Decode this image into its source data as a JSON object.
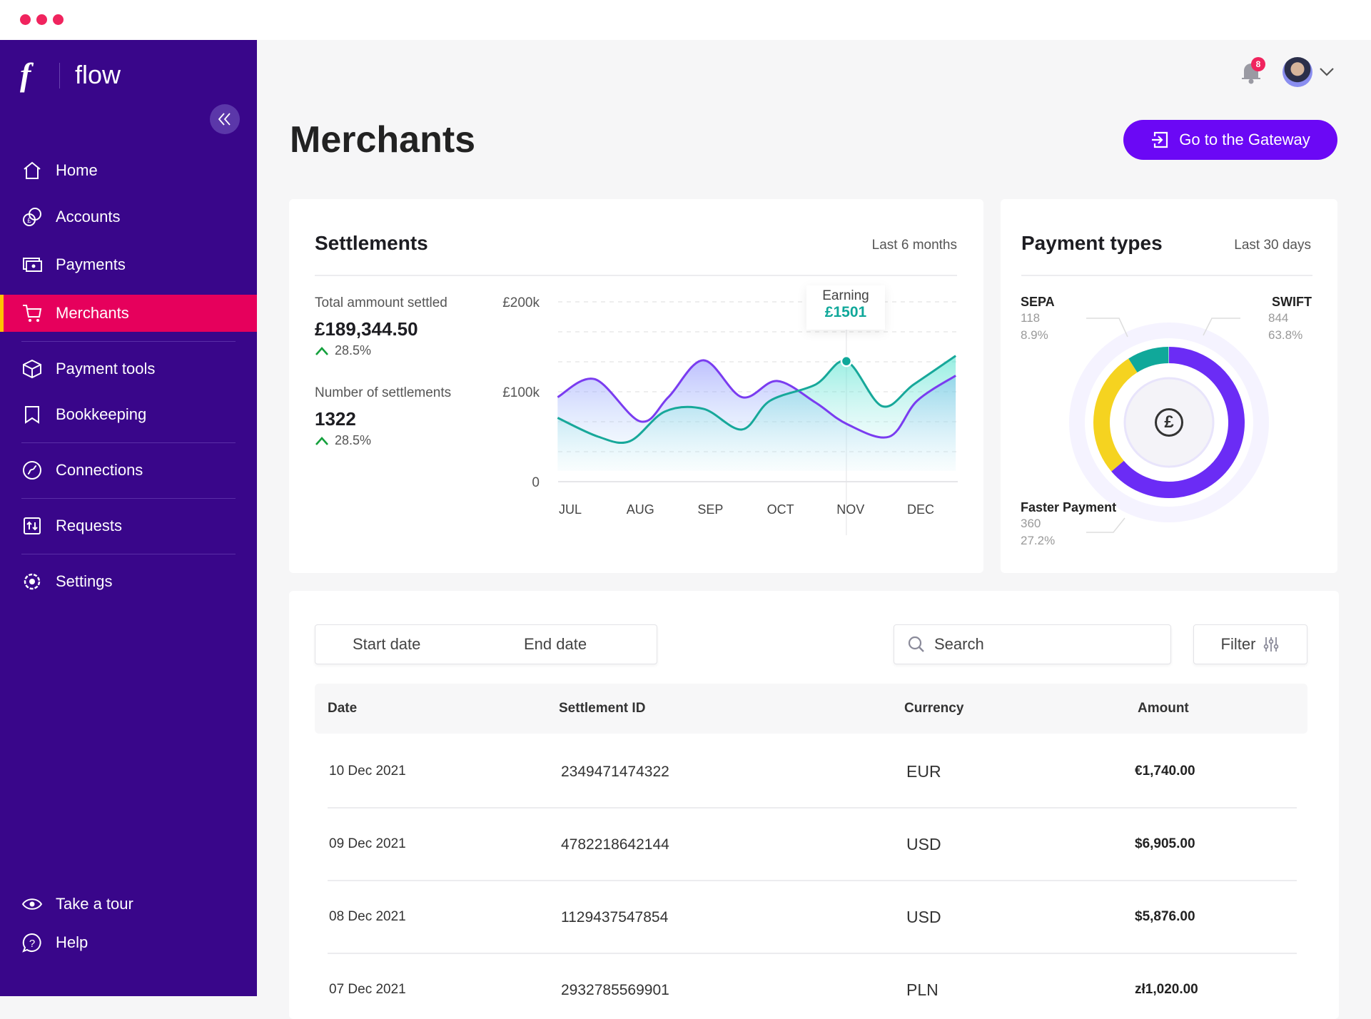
{
  "app": {
    "logo_letter": "f",
    "name": "flow"
  },
  "sidebar": {
    "items": [
      {
        "label": "Home",
        "icon": "home-icon"
      },
      {
        "label": "Accounts",
        "icon": "coins-icon"
      },
      {
        "label": "Payments",
        "icon": "cash-icon"
      },
      {
        "label": "Merchants",
        "icon": "cart-icon",
        "active": true
      },
      {
        "label": "Payment tools",
        "icon": "box-icon"
      },
      {
        "label": "Bookkeeping",
        "icon": "bookmark-icon"
      },
      {
        "label": "Connections",
        "icon": "connections-icon"
      },
      {
        "label": "Requests",
        "icon": "transfer-icon"
      },
      {
        "label": "Settings",
        "icon": "gear-icon"
      }
    ],
    "footer": [
      {
        "label": "Take a tour",
        "icon": "eye-icon"
      },
      {
        "label": "Help",
        "icon": "help-icon"
      }
    ]
  },
  "header": {
    "notifications": "8",
    "title": "Merchants",
    "gateway_button": "Go to the Gateway"
  },
  "settlements": {
    "title": "Settlements",
    "period": "Last 6 months",
    "total_label": "Total ammount settled",
    "total_value": "£189,344.50",
    "total_change": "28.5%",
    "count_label": "Number of settlements",
    "count_value": "1322",
    "count_change": "28.5%",
    "tooltip_label": "Earning",
    "tooltip_value": "£1501"
  },
  "chart_data": {
    "type": "line",
    "categories": [
      "JUL",
      "AUG",
      "SEP",
      "OCT",
      "NOV",
      "DEC"
    ],
    "y_ticks": [
      "£200k",
      "£100k",
      "0"
    ],
    "ylim": [
      0,
      200
    ],
    "series": [
      {
        "name": "purple",
        "color": "#7a3cf0",
        "x": [
          -0.18,
          0.35,
          1.0,
          1.4,
          1.9,
          2.45,
          2.95,
          3.5,
          3.95,
          4.55,
          4.95,
          5.5
        ],
        "values": [
          94,
          114,
          67,
          94,
          135,
          94,
          112,
          88,
          64,
          50,
          90,
          118
        ]
      },
      {
        "name": "teal",
        "color": "#17a89a",
        "x": [
          -0.18,
          0.4,
          0.85,
          1.35,
          1.9,
          2.45,
          2.85,
          3.5,
          3.94,
          4.45,
          4.9,
          5.5
        ],
        "values": [
          71,
          50,
          45,
          78,
          81,
          58,
          90,
          108,
          134,
          84,
          108,
          140
        ]
      }
    ],
    "highlight": {
      "series": "teal",
      "x": 3.94,
      "value": 134
    }
  },
  "payment_types": {
    "title": "Payment types",
    "period": "Last 30 days",
    "chart_data": {
      "type": "pie",
      "slices": [
        {
          "name": "SWIFT",
          "count": "844",
          "percent": "63.8%",
          "value": 63.8,
          "color": "#6b2cf5"
        },
        {
          "name": "Faster Payment",
          "count": "360",
          "percent": "27.2%",
          "value": 27.2,
          "color": "#f5d320"
        },
        {
          "name": "SEPA",
          "count": "118",
          "percent": "8.9%",
          "value": 8.9,
          "color": "#10a89a"
        }
      ]
    },
    "center_symbol": "£"
  },
  "table": {
    "start_date_placeholder": "Start date",
    "end_date_placeholder": "End date",
    "search_placeholder": "Search",
    "filter_label": "Filter",
    "columns": [
      "Date",
      "Settlement ID",
      "Currency",
      "Amount"
    ],
    "rows": [
      [
        "10 Dec 2021",
        "2349471474322",
        "EUR",
        "€1,740.00"
      ],
      [
        "09 Dec 2021",
        "4782218642144",
        "USD",
        "$6,905.00"
      ],
      [
        "08 Dec 2021",
        "1129437547854",
        "USD",
        "$5,876.00"
      ],
      [
        "07 Dec 2021",
        "2932785569901",
        "PLN",
        "zł1,020.00"
      ]
    ]
  }
}
